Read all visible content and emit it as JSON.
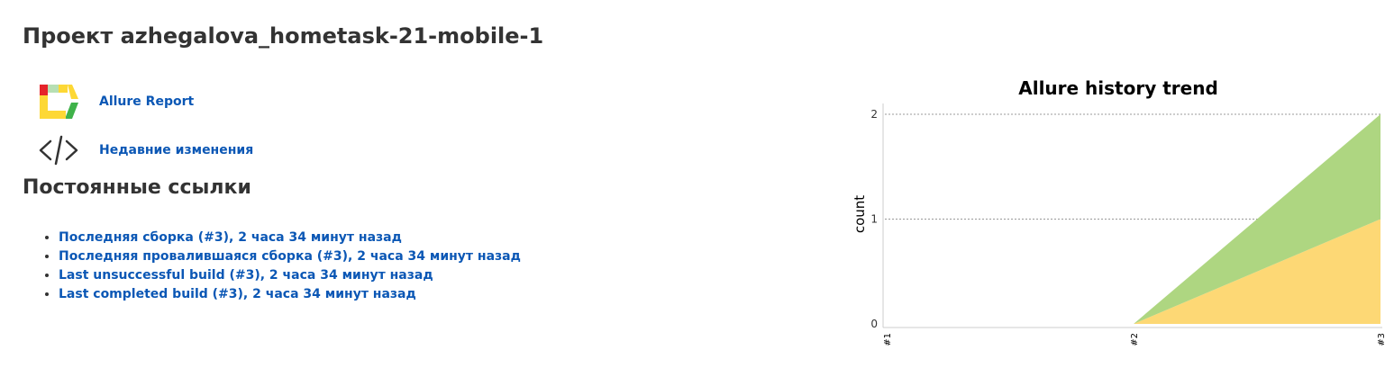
{
  "page": {
    "title": "Проект azhegalova_hometask-21-mobile-1"
  },
  "task_links": [
    {
      "label": "Allure Report",
      "icon": "allure-logo-icon"
    },
    {
      "label": "Недавние изменения",
      "icon": "code-icon"
    }
  ],
  "permalinks": {
    "heading": "Постоянные ссылки",
    "items": [
      "Последняя сборка (#3), 2 часа 34 минут назад",
      "Последняя провалившаяся сборка (#3), 2 часа 34 минут назад",
      "Last unsuccessful build (#3), 2 часа 34 минут назад",
      "Last completed build (#3), 2 часа 34 минут назад"
    ]
  },
  "colors": {
    "link": "#0b57b5",
    "passed": "#aed681",
    "broken": "#fdd875",
    "grid": "#999999"
  },
  "chart_data": {
    "type": "area",
    "title": "Allure history trend",
    "xlabel": "",
    "ylabel": "count",
    "categories": [
      "#1",
      "#2",
      "#3"
    ],
    "ylim": [
      0,
      2
    ],
    "yticks": [
      0,
      1,
      2
    ],
    "grid": "horizontal dotted",
    "stacked": true,
    "series": [
      {
        "values": [
          0,
          0,
          1
        ],
        "color": "#fdd875"
      },
      {
        "values": [
          0,
          0,
          1
        ],
        "color": "#aed681"
      }
    ]
  }
}
